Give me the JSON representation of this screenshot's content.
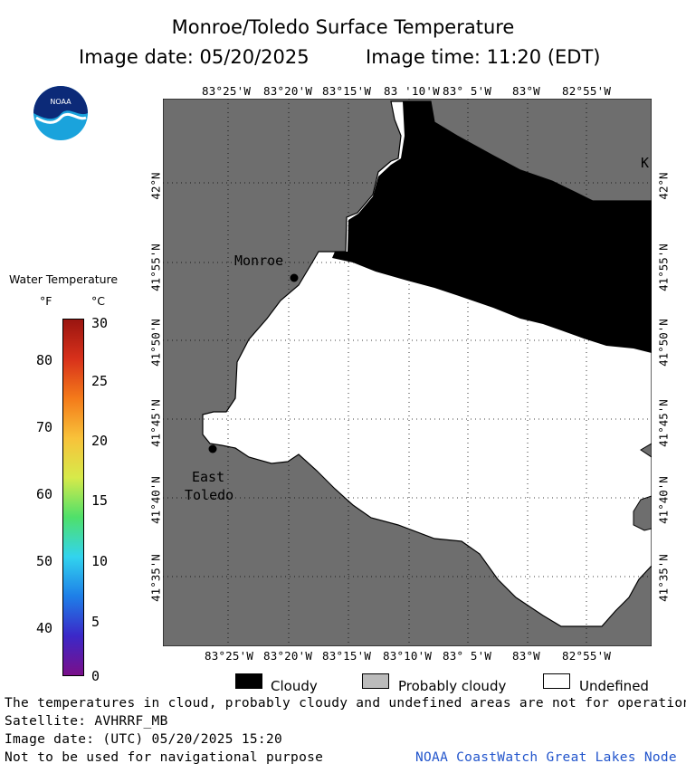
{
  "title": "Monroe/Toledo Surface Temperature",
  "subtitle_date": "Image date: 05/20/2025",
  "subtitle_time": "Image time: 11:20 (EDT)",
  "logo_text": "NOAA",
  "lon_labels": [
    "83°25'W",
    "83°20'W",
    "83°15'W",
    "83 '10'W",
    "83° 5'W",
    "83°W",
    "82°55'W"
  ],
  "lon_labels_bottom": [
    "83°25'W",
    "83°20'W",
    "83°15'W",
    "83°10'W",
    "83° 5'W",
    "83°W",
    "82°55'W"
  ],
  "lat_labels": [
    "42°N",
    "41°55'N",
    "41°50'N",
    "41°45'N",
    "41°40'N",
    "41°35'N"
  ],
  "places": {
    "monroe": "Monroe",
    "east_toledo_1": "East",
    "east_toledo_2": "Toledo",
    "edge_k": "K"
  },
  "colorbar": {
    "title": "Water Temperature",
    "unit_f": "°F",
    "unit_c": "°C",
    "f_ticks": [
      "80",
      "70",
      "60",
      "50",
      "40"
    ],
    "c_ticks": [
      "30",
      "25",
      "20",
      "15",
      "10",
      "5",
      "0"
    ],
    "stops": [
      "#7a0f8a",
      "#3b28c8",
      "#1e7fe8",
      "#32d4ee",
      "#4fe06a",
      "#d7ea4a",
      "#f8c23a",
      "#f47b1a",
      "#d8311b",
      "#9a1510"
    ]
  },
  "legend": {
    "cloudy": "Cloudy",
    "probably_cloudy": "Probably cloudy",
    "undefined": "Undefined",
    "colors": {
      "cloudy": "#000000",
      "probably_cloudy": "#bbbbbb",
      "undefined": "#ffffff"
    }
  },
  "notes": {
    "line1": "The temperatures in cloud, probably cloudy and undefined areas are not for operational pur",
    "line2": "Satellite: AVHRRF_MB",
    "line3": "Image date: (UTC) 05/20/2025  15:20",
    "line4": "Not to be used for navigational purpose",
    "credit": "NOAA CoastWatch Great Lakes Node"
  },
  "map_colors": {
    "land": "#6e6e6e",
    "water_undefined": "#ffffff",
    "cloud": "#000000",
    "credit": "#2255cc"
  }
}
